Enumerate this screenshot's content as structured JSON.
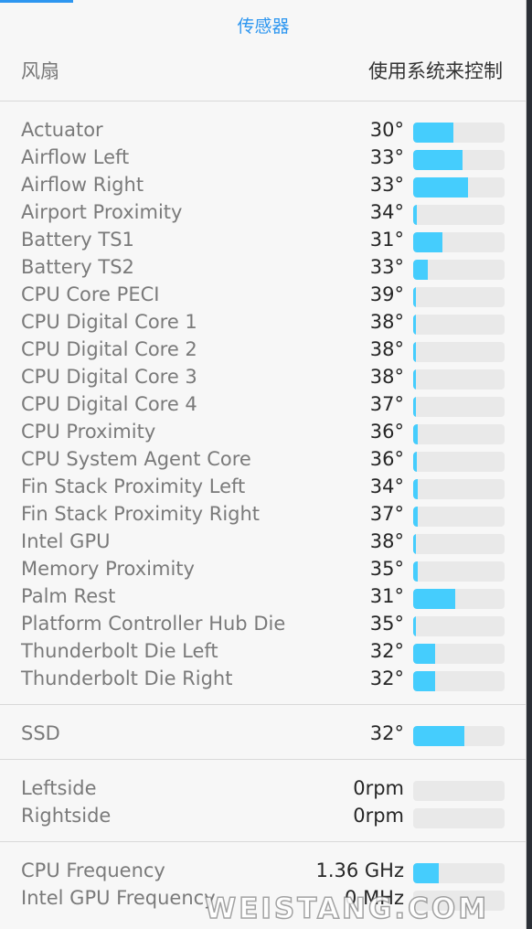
{
  "header": {
    "tab_title": "传感器"
  },
  "fan_control": {
    "label": "风扇",
    "mode": "使用系统来控制"
  },
  "temperatures": [
    {
      "name": "Actuator",
      "value": "30°",
      "level": 0.44
    },
    {
      "name": "Airflow Left",
      "value": "33°",
      "level": 0.54
    },
    {
      "name": "Airflow Right",
      "value": "33°",
      "level": 0.6
    },
    {
      "name": "Airport Proximity",
      "value": "34°",
      "level": 0.04
    },
    {
      "name": "Battery TS1",
      "value": "31°",
      "level": 0.32
    },
    {
      "name": "Battery TS2",
      "value": "33°",
      "level": 0.16
    },
    {
      "name": "CPU Core PECI",
      "value": "39°",
      "level": 0.02
    },
    {
      "name": "CPU Digital Core 1",
      "value": "38°",
      "level": 0.02
    },
    {
      "name": "CPU Digital Core 2",
      "value": "38°",
      "level": 0.03
    },
    {
      "name": "CPU Digital Core 3",
      "value": "38°",
      "level": 0.03
    },
    {
      "name": "CPU Digital Core 4",
      "value": "37°",
      "level": 0.02
    },
    {
      "name": "CPU Proximity",
      "value": "36°",
      "level": 0.05
    },
    {
      "name": "CPU System Agent Core",
      "value": "36°",
      "level": 0.04
    },
    {
      "name": "Fin Stack Proximity Left",
      "value": "34°",
      "level": 0.05
    },
    {
      "name": "Fin Stack Proximity Right",
      "value": "37°",
      "level": 0.05
    },
    {
      "name": "Intel GPU",
      "value": "38°",
      "level": 0.02
    },
    {
      "name": "Memory Proximity",
      "value": "35°",
      "level": 0.05
    },
    {
      "name": "Palm Rest",
      "value": "31°",
      "level": 0.46
    },
    {
      "name": "Platform Controller Hub Die",
      "value": "35°",
      "level": 0.03
    },
    {
      "name": "Thunderbolt Die Left",
      "value": "32°",
      "level": 0.24
    },
    {
      "name": "Thunderbolt Die Right",
      "value": "32°",
      "level": 0.24
    }
  ],
  "storage": [
    {
      "name": "SSD",
      "value": "32°",
      "level": 0.56
    }
  ],
  "fans": [
    {
      "name": "Leftside",
      "value": "0rpm",
      "level": 0.0
    },
    {
      "name": "Rightside",
      "value": "0rpm",
      "level": 0.0
    }
  ],
  "frequencies": [
    {
      "name": "CPU Frequency",
      "value": "1.36 GHz",
      "level": 0.28
    },
    {
      "name": "Intel GPU Frequency",
      "value": "0 MHz",
      "level": 0.0
    }
  ],
  "watermark": "WEISTANG.COM",
  "colors": {
    "accent": "#2d96f0",
    "bar_fill": "#45cdfd",
    "bar_track": "#e9e9e9"
  }
}
